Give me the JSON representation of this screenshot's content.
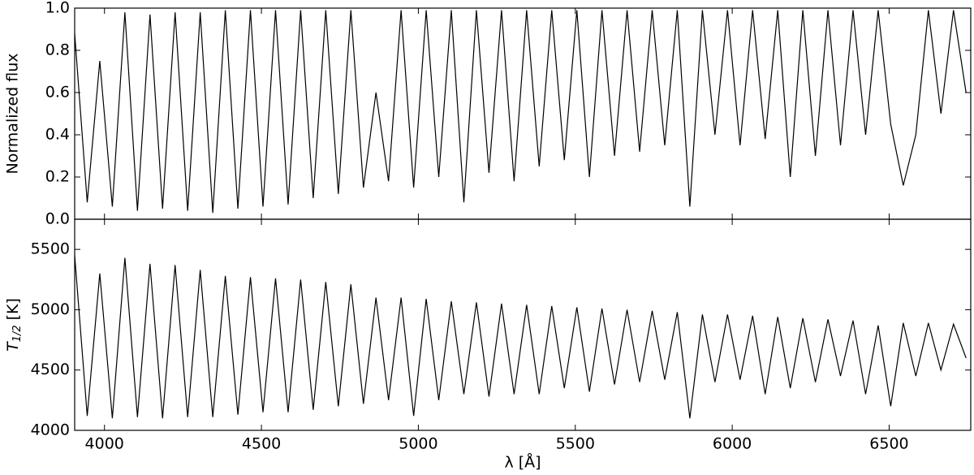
{
  "chart_data": [
    {
      "type": "line",
      "y_label": "Normalized flux",
      "xlim": [
        3905,
        6760
      ],
      "ylim": [
        0,
        1
      ],
      "yticks": [
        {
          "value": 0,
          "label": "0.0"
        },
        0.2,
        0.4,
        0.6,
        0.8,
        {
          "value": 1,
          "label": "1.0"
        }
      ],
      "x": [
        3905,
        3945,
        3985,
        4025,
        4065,
        4105,
        4145,
        4185,
        4225,
        4265,
        4305,
        4345,
        4385,
        4425,
        4465,
        4505,
        4545,
        4585,
        4625,
        4665,
        4705,
        4745,
        4785,
        4825,
        4865,
        4905,
        4945,
        4985,
        5025,
        5065,
        5105,
        5145,
        5185,
        5225,
        5265,
        5305,
        5345,
        5385,
        5425,
        5465,
        5505,
        5545,
        5585,
        5625,
        5665,
        5705,
        5745,
        5785,
        5825,
        5865,
        5905,
        5945,
        5985,
        6025,
        6065,
        6105,
        6145,
        6185,
        6225,
        6265,
        6305,
        6345,
        6385,
        6425,
        6465,
        6505,
        6545,
        6585,
        6625,
        6665,
        6705,
        6745
      ],
      "series": [
        {
          "color": "#000000",
          "values": [
            0.88,
            0.08,
            0.75,
            0.06,
            0.98,
            0.04,
            0.97,
            0.05,
            0.98,
            0.04,
            0.98,
            0.03,
            0.99,
            0.05,
            0.99,
            0.06,
            0.99,
            0.07,
            0.99,
            0.1,
            0.99,
            0.12,
            0.99,
            0.15,
            0.6,
            0.18,
            0.99,
            0.15,
            0.99,
            0.2,
            0.99,
            0.08,
            0.99,
            0.22,
            0.99,
            0.18,
            0.99,
            0.25,
            0.99,
            0.28,
            0.99,
            0.2,
            0.99,
            0.3,
            0.99,
            0.32,
            0.99,
            0.35,
            0.99,
            0.06,
            0.99,
            0.4,
            0.99,
            0.35,
            0.99,
            0.38,
            0.99,
            0.2,
            0.99,
            0.3,
            0.99,
            0.35,
            0.99,
            0.4,
            0.99,
            0.45,
            0.16,
            0.4,
            0.99,
            0.5,
            0.99,
            0.6
          ]
        }
      ]
    },
    {
      "type": "line",
      "x_label": "λ [Å]",
      "y_label_parts": [
        "T",
        "1/2",
        "[K]"
      ],
      "xlim": [
        3905,
        6760
      ],
      "ylim": [
        4000,
        5750
      ],
      "xticks": [
        4000,
        4500,
        5000,
        5500,
        6000,
        6500
      ],
      "yticks": [
        4000,
        4500,
        5000,
        5500
      ],
      "x": [
        3905,
        3945,
        3985,
        4025,
        4065,
        4105,
        4145,
        4185,
        4225,
        4265,
        4305,
        4345,
        4385,
        4425,
        4465,
        4505,
        4545,
        4585,
        4625,
        4665,
        4705,
        4745,
        4785,
        4825,
        4865,
        4905,
        4945,
        4985,
        5025,
        5065,
        5105,
        5145,
        5185,
        5225,
        5265,
        5305,
        5345,
        5385,
        5425,
        5465,
        5505,
        5545,
        5585,
        5625,
        5665,
        5705,
        5745,
        5785,
        5825,
        5865,
        5905,
        5945,
        5985,
        6025,
        6065,
        6105,
        6145,
        6185,
        6225,
        6265,
        6305,
        6345,
        6385,
        6425,
        6465,
        6505,
        6545,
        6585,
        6625,
        6665,
        6705,
        6745
      ],
      "series": [
        {
          "color": "#000000",
          "values": [
            5450,
            4120,
            5300,
            4100,
            5430,
            4110,
            5380,
            4100,
            5370,
            4110,
            5330,
            4110,
            5280,
            4130,
            5270,
            4150,
            5260,
            4150,
            5250,
            4170,
            5230,
            4200,
            5210,
            4220,
            5100,
            4250,
            5100,
            4120,
            5090,
            4250,
            5070,
            4300,
            5060,
            4280,
            5050,
            4300,
            5040,
            4300,
            5030,
            4350,
            5020,
            4320,
            5010,
            4380,
            5000,
            4400,
            4990,
            4420,
            4980,
            4100,
            4960,
            4400,
            4960,
            4420,
            4950,
            4300,
            4940,
            4350,
            4930,
            4400,
            4920,
            4450,
            4910,
            4300,
            4870,
            4200,
            4890,
            4450,
            4890,
            4500,
            4880,
            4600
          ]
        }
      ]
    }
  ]
}
